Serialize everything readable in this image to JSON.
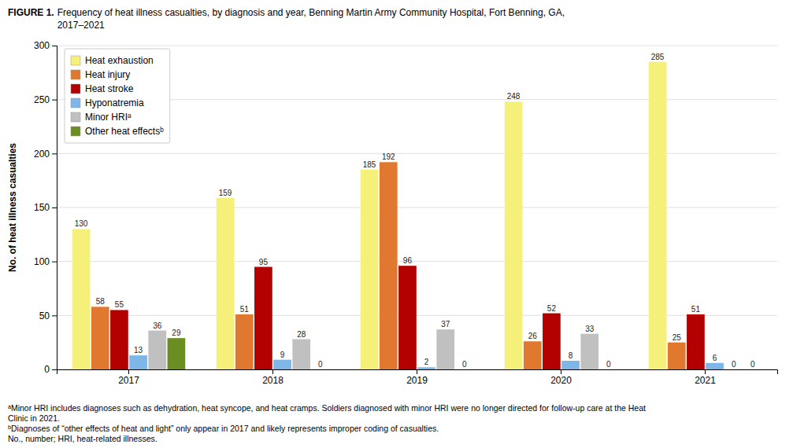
{
  "chart_data": {
    "type": "bar",
    "title": "FIGURE 1.",
    "subtitle": "Frequency of heat illness casualties, by diagnosis and year, Benning Martin Army Community Hospital, Fort Benning, GA,\n2017–2021",
    "y_label": "No. of heat illness casualties",
    "categories": [
      "2017",
      "2018",
      "2019",
      "2020",
      "2021"
    ],
    "series": [
      {
        "name": "Heat exhaustion",
        "color": "#F5F07A",
        "values": [
          130,
          159,
          185,
          248,
          285
        ]
      },
      {
        "name": "Heat injury",
        "color": "#E07830",
        "values": [
          58,
          51,
          192,
          26,
          25
        ]
      },
      {
        "name": "Heat stroke",
        "color": "#B30000",
        "values": [
          55,
          95,
          96,
          52,
          51
        ]
      },
      {
        "name": "Hyponatremia",
        "color": "#7EB6E8",
        "values": [
          13,
          9,
          2,
          8,
          6
        ]
      },
      {
        "name": "Minor HRIᵃ",
        "color": "#C0C0C0",
        "values": [
          36,
          28,
          37,
          33,
          0
        ]
      },
      {
        "name": "Other heat effectsᵇ",
        "color": "#6B8E23",
        "values": [
          29,
          0,
          0,
          0,
          0
        ]
      }
    ],
    "ylim": [
      0,
      300
    ],
    "yticks": [
      0,
      50,
      100,
      150,
      200,
      250,
      300
    ],
    "grid": true,
    "legend": "upper left",
    "data_labels": true,
    "annotations": [
      "ᵃMinor HRI includes diagnoses such as dehydration, heat syncope, and heat cramps. Soldiers diagnosed with minor HRI were no longer directed for follow-up care at the Heat\nClinic in 2021.",
      "ᵇDiagnoses of “other effects of heat and light” only appear in 2017 and likely represents improper coding of casualties.",
      "No., number; HRI, heat-related illnesses."
    ]
  }
}
